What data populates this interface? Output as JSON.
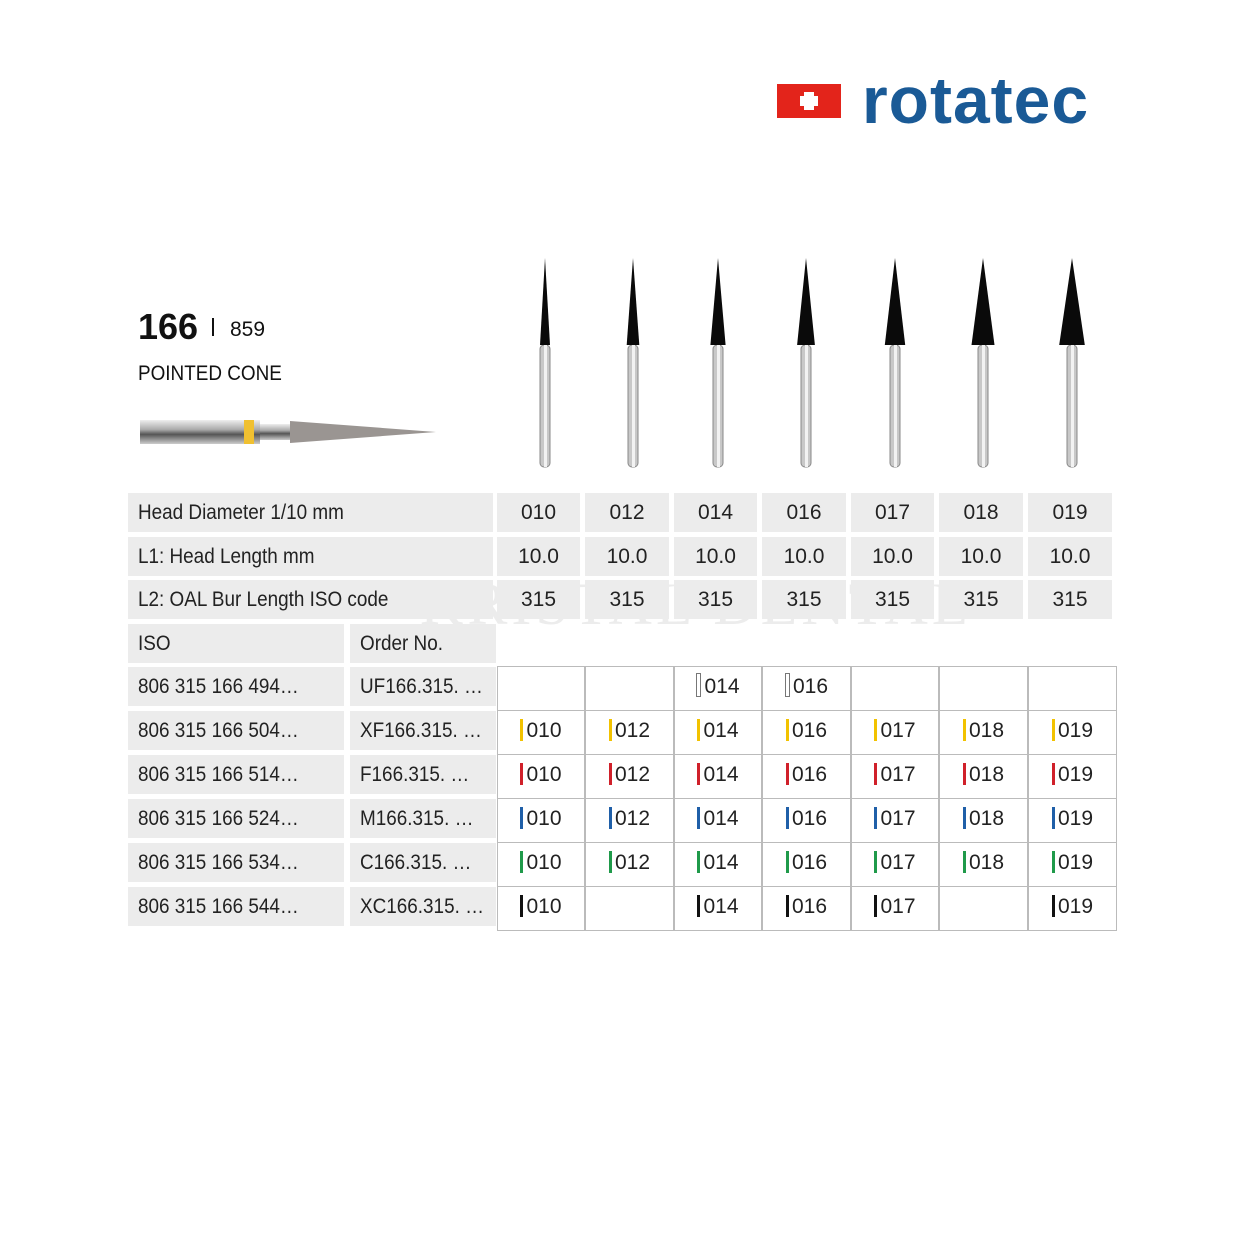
{
  "brand": {
    "name": "rotatec",
    "flag_color": "#e3241b",
    "text_color": "#1a5a96"
  },
  "product": {
    "number": "166",
    "alt_number": "859",
    "shape": "POINTED CONE"
  },
  "watermark": "KRISTAL DENTAL",
  "specs": [
    {
      "label": "Head Diameter 1/10 mm",
      "values": [
        "010",
        "012",
        "014",
        "016",
        "017",
        "018",
        "019"
      ]
    },
    {
      "label": "L1: Head Length mm",
      "values": [
        "10.0",
        "10.0",
        "10.0",
        "10.0",
        "10.0",
        "10.0",
        "10.0"
      ]
    },
    {
      "label": "L2: OAL Bur Length ISO code",
      "values": [
        "315",
        "315",
        "315",
        "315",
        "315",
        "315",
        "315"
      ]
    }
  ],
  "order_header": {
    "iso": "ISO",
    "order": "Order No."
  },
  "orders": [
    {
      "iso": "806 315 166 494…",
      "order": "UF166.315. …",
      "color": "#ffffff",
      "sizes": [
        "",
        "",
        "014",
        "016",
        "",
        "",
        ""
      ]
    },
    {
      "iso": "806 315 166 504…",
      "order": "XF166.315. …",
      "color": "#f2c200",
      "sizes": [
        "010",
        "012",
        "014",
        "016",
        "017",
        "018",
        "019"
      ]
    },
    {
      "iso": "806 315 166 514…",
      "order": "F166.315. …",
      "color": "#d0202a",
      "sizes": [
        "010",
        "012",
        "014",
        "016",
        "017",
        "018",
        "019"
      ]
    },
    {
      "iso": "806 315 166 524…",
      "order": "M166.315. …",
      "color": "#1f5fa8",
      "sizes": [
        "010",
        "012",
        "014",
        "016",
        "017",
        "018",
        "019"
      ]
    },
    {
      "iso": "806 315 166 534…",
      "order": "C166.315. …",
      "color": "#1f9a4a",
      "sizes": [
        "010",
        "012",
        "014",
        "016",
        "017",
        "018",
        "019"
      ]
    },
    {
      "iso": "806 315 166 544…",
      "order": "XC166.315. …",
      "color": "#111111",
      "sizes": [
        "010",
        "",
        "014",
        "016",
        "017",
        "",
        "019"
      ]
    }
  ]
}
